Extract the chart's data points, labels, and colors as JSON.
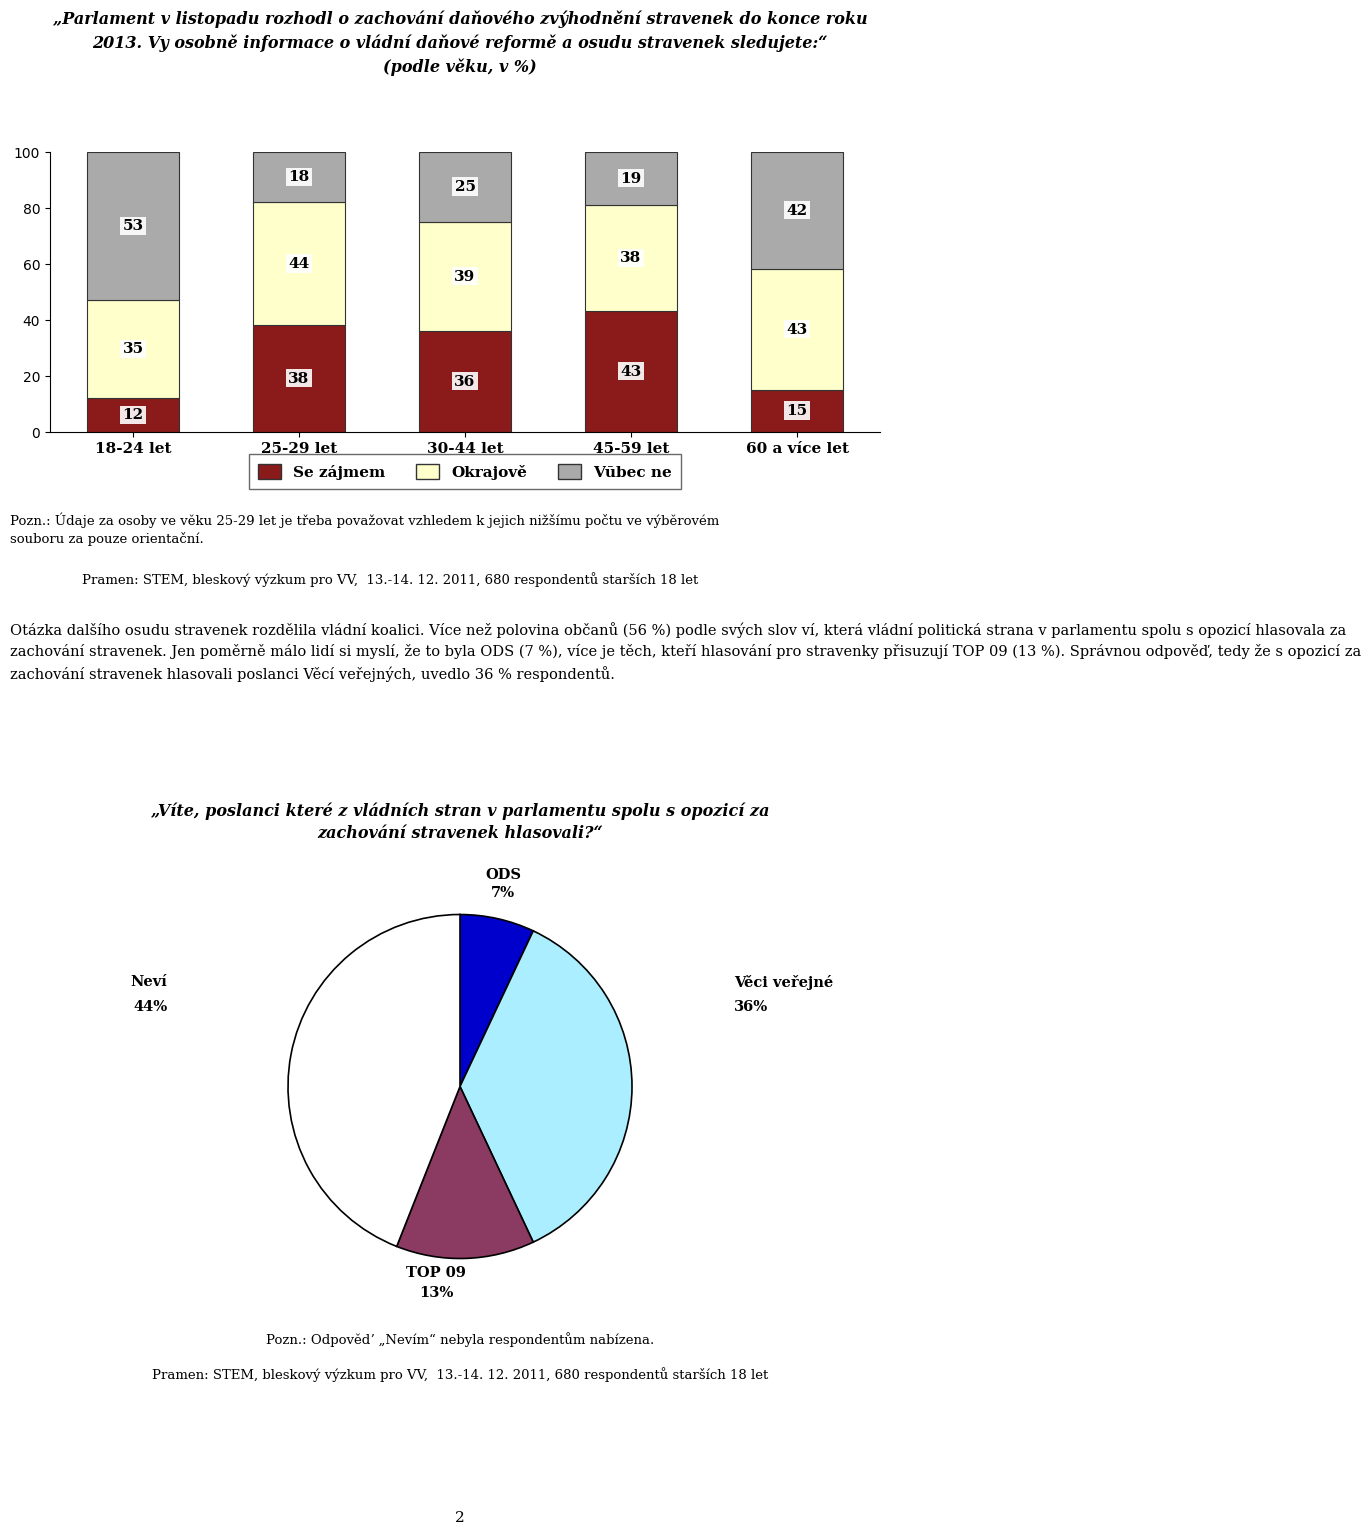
{
  "title_line1": "„Parlament v listopadu rozhodl o zachování daňového zvýhodnění stravenek do konce roku",
  "title_line2": "2013. Vy osobně informace o vládní daňové reformě a osudu stravenek sledujete:“",
  "title_line3": "(podle věku, v %)",
  "categories": [
    "18-24 let",
    "25-29 let",
    "30-44 let",
    "45-59 let",
    "60 a více let"
  ],
  "se_zajmem": [
    12,
    38,
    36,
    43,
    15
  ],
  "okrajove": [
    35,
    44,
    39,
    38,
    43
  ],
  "vubec_ne": [
    53,
    18,
    25,
    19,
    42
  ],
  "bar_color_se_zajmem": "#8B1A1A",
  "bar_color_okrajove": "#FFFFCC",
  "bar_color_vubec_ne": "#AAAAAA",
  "bar_edge_color": "#333333",
  "ylim": [
    0,
    100
  ],
  "yticks": [
    0,
    20,
    40,
    60,
    80,
    100
  ],
  "legend_labels": [
    "Se zájmem",
    "Okrajově",
    "Vūbec ne"
  ],
  "note1": "Pozn.: Údaje za osoby ve věku 25-29 let je třeba považovat vzhledem k jejich nižšímu počtu ve výběrovém",
  "note1b": "souboru za pouze orientační.",
  "note2": "Pramen: STEM, bleskový výzkum pro VV,  13.-14. 12. 2011, 680 respondentů starších 18 let",
  "body_line1": "Otázka dalšího osudu stravenek rozdělila vládní koalici. Více než polovina občanů (56 %) podle svých slov ví, která vládní politická strana v parlamentu spolu s opozicí hlasovala za",
  "body_line2": "zachování stravenek. Jen poměrně málo lidí si myslsí, že to byla ODS (7 %), více je těch, kteří hlasování pro stravenky přisuzují TOP 09 (13 %). Správnou odpovědʼ, tedy že s opozicí za",
  "body_line3": "zachování stravenek hlasovali poslanci Věcí veřejných, uvedlo 36 % respondentů.",
  "pie_title_line1": "„Víte, poslanci které z vládních stran v parlamentu spolu s opozicí za",
  "pie_title_line2": "zachování stravenek hlasovali?“",
  "pie_labels": [
    "ODS",
    "Věci veřejné",
    "TOP 09",
    "Neví"
  ],
  "pie_values": [
    7,
    36,
    13,
    44
  ],
  "pie_colors": [
    "#0000CC",
    "#AAEEFF",
    "#8B3A62",
    "#FFFFFF"
  ],
  "pie_edge_color": "#000000",
  "note3": "Pozn.: Odpovědʼ „Nevím“ nebyla respondentům nabízena.",
  "note4": "Pramen: STEM, bleskový výzkum pro VV,  13.-14. 12. 2011, 680 respondentů starších 18 let",
  "page_number": "2",
  "bg_color": "#FFFFFF"
}
